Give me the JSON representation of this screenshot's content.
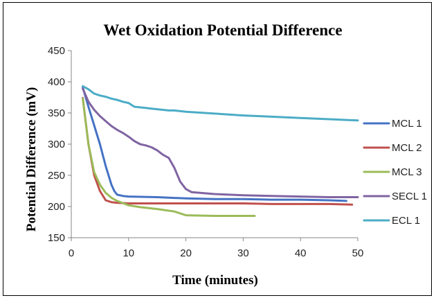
{
  "chart_data": {
    "type": "line",
    "title": "Wet Oxidation Potential Difference",
    "xlabel": "Time (minutes)",
    "ylabel": "Potential Difference (mV)",
    "xlim": [
      0,
      50
    ],
    "ylim": [
      150,
      450
    ],
    "xticks": [
      0,
      10,
      20,
      30,
      40,
      50
    ],
    "yticks": [
      150,
      200,
      250,
      300,
      350,
      400,
      450
    ],
    "grid": false,
    "legend_position": "right",
    "series": [
      {
        "name": "MCL 1",
        "color": "#4472C4",
        "x": [
          2,
          3,
          4,
          5,
          6,
          7,
          7.5,
          8,
          9,
          10,
          15,
          20,
          25,
          30,
          35,
          40,
          45,
          48
        ],
        "y": [
          391,
          360,
          330,
          300,
          265,
          235,
          225,
          219,
          217,
          216,
          215,
          213,
          212,
          212,
          211,
          211,
          210,
          209
        ]
      },
      {
        "name": "MCL 2",
        "color": "#C0504D",
        "x": [
          2,
          3,
          4,
          5,
          6,
          7,
          8,
          10,
          15,
          20,
          25,
          30,
          35,
          40,
          45,
          49
        ],
        "y": [
          374,
          300,
          250,
          225,
          210,
          207,
          206,
          205,
          205,
          205,
          205,
          205,
          204,
          204,
          204,
          203
        ]
      },
      {
        "name": "MCL 3",
        "color": "#9BBB59",
        "x": [
          2,
          3,
          4,
          5,
          6,
          7,
          8,
          10,
          12,
          15,
          18,
          20,
          25,
          30,
          32
        ],
        "y": [
          373,
          300,
          255,
          235,
          222,
          214,
          209,
          202,
          199,
          196,
          192,
          186,
          185,
          185,
          185
        ]
      },
      {
        "name": "SECL 1",
        "color": "#8064A2",
        "x": [
          2,
          3,
          4,
          5,
          6,
          7,
          8,
          9,
          10,
          11,
          12,
          13,
          14,
          15,
          16,
          17,
          18,
          19,
          20,
          21,
          25,
          30,
          35,
          40,
          45,
          50
        ],
        "y": [
          389,
          368,
          355,
          345,
          337,
          329,
          323,
          318,
          312,
          305,
          300,
          298,
          295,
          290,
          283,
          278,
          262,
          240,
          228,
          223,
          220,
          218,
          217,
          216,
          215,
          215
        ]
      },
      {
        "name": "ECL 1",
        "color": "#4BACC6",
        "x": [
          2,
          3,
          4,
          5,
          6,
          7,
          8,
          9,
          10,
          11,
          12,
          13,
          14,
          15,
          16,
          17,
          18,
          20,
          25,
          30,
          35,
          40,
          45,
          50
        ],
        "y": [
          393,
          388,
          381,
          378,
          376,
          373,
          371,
          368,
          366,
          360,
          359,
          358,
          357,
          356,
          355,
          354,
          354,
          352,
          349,
          346,
          344,
          342,
          340,
          338
        ]
      }
    ]
  }
}
